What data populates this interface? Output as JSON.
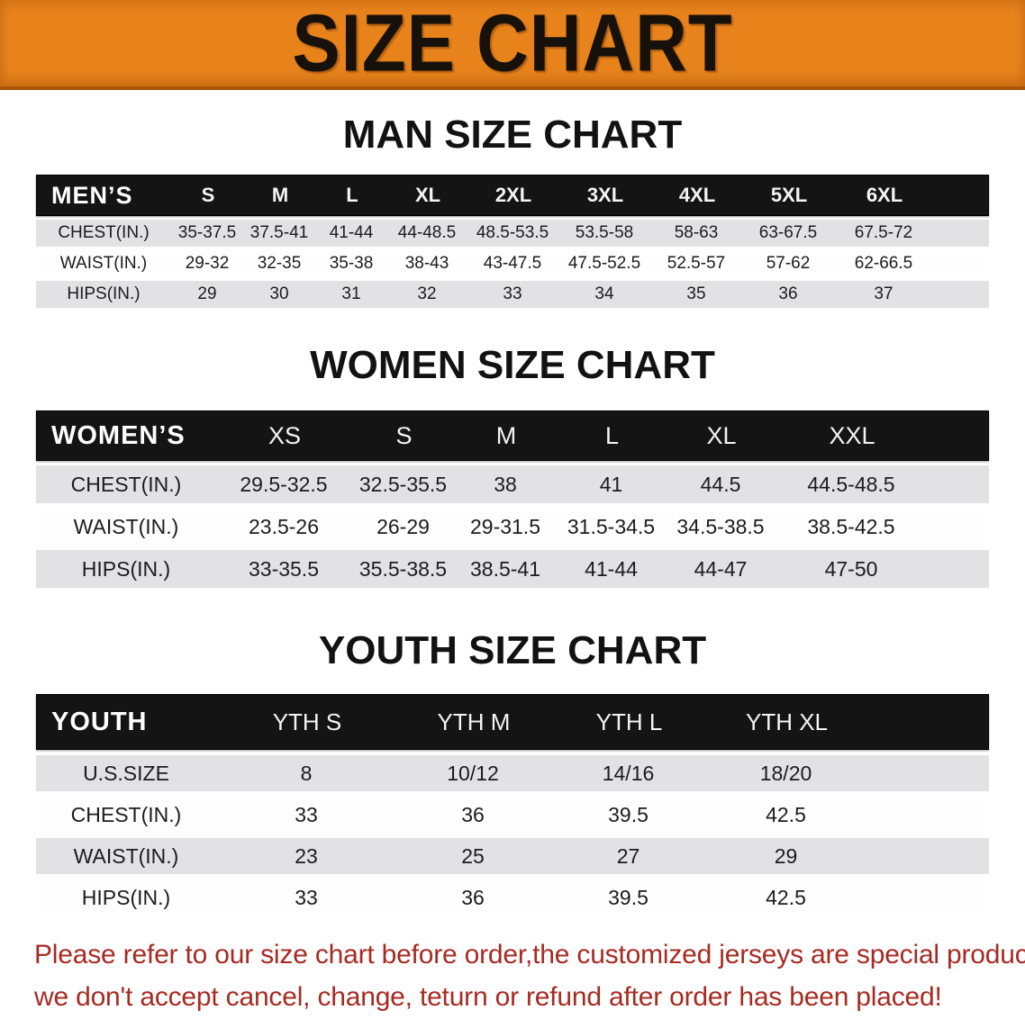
{
  "banner": {
    "title": "SIZE CHART",
    "bg_color": "#E8831C",
    "text_color": "#17110C"
  },
  "men": {
    "heading": "MAN SIZE CHART",
    "table": {
      "label": "MEN’S",
      "columns": [
        "S",
        "M",
        "L",
        "XL",
        "2XL",
        "3XL",
        "4XL",
        "5XL",
        "6XL"
      ],
      "rows": [
        {
          "label": "CHEST(IN.)",
          "values": [
            "35-37.5",
            "37.5-41",
            "41-44",
            "44-48.5",
            "48.5-53.5",
            "53.5-58",
            "58-63",
            "63-67.5",
            "67.5-72"
          ]
        },
        {
          "label": "WAIST(IN.)",
          "values": [
            "29-32",
            "32-35",
            "35-38",
            "38-43",
            "43-47.5",
            "47.5-52.5",
            "52.5-57",
            "57-62",
            "62-66.5"
          ]
        },
        {
          "label": "HIPS(IN.)",
          "values": [
            "29",
            "30",
            "31",
            "32",
            "33",
            "34",
            "35",
            "36",
            "37"
          ]
        }
      ]
    }
  },
  "women": {
    "heading": "WOMEN SIZE CHART",
    "table": {
      "label": "WOMEN’S",
      "columns": [
        "XS",
        "S",
        "M",
        "L",
        "XL",
        "XXL"
      ],
      "rows": [
        {
          "label": "CHEST(IN.)",
          "values": [
            "29.5-32.5",
            "32.5-35.5",
            "38",
            "41",
            "44.5",
            "44.5-48.5"
          ]
        },
        {
          "label": "WAIST(IN.)",
          "values": [
            "23.5-26",
            "26-29",
            "29-31.5",
            "31.5-34.5",
            "34.5-38.5",
            "38.5-42.5"
          ]
        },
        {
          "label": "HIPS(IN.)",
          "values": [
            "33-35.5",
            "35.5-38.5",
            "38.5-41",
            "41-44",
            "44-47",
            "47-50"
          ]
        }
      ]
    }
  },
  "youth": {
    "heading": "YOUTH SIZE CHART",
    "table": {
      "label": "YOUTH",
      "columns": [
        "YTH S",
        "YTH M",
        "YTH L",
        "YTH XL"
      ],
      "rows": [
        {
          "label": "U.S.SIZE",
          "values": [
            "8",
            "10/12",
            "14/16",
            "18/20"
          ]
        },
        {
          "label": "CHEST(IN.)",
          "values": [
            "33",
            "36",
            "39.5",
            "42.5"
          ]
        },
        {
          "label": "WAIST(IN.)",
          "values": [
            "23",
            "25",
            "27",
            "29"
          ]
        },
        {
          "label": "HIPS(IN.)",
          "values": [
            "33",
            "36",
            "39.5",
            "42.5"
          ]
        }
      ]
    }
  },
  "footer": {
    "line1": "Please refer to our size chart before order,the customized jerseys are special products,",
    "line2": "we don't accept cancel, change, teturn or refund after order has been placed!",
    "color": "#A62B22"
  }
}
